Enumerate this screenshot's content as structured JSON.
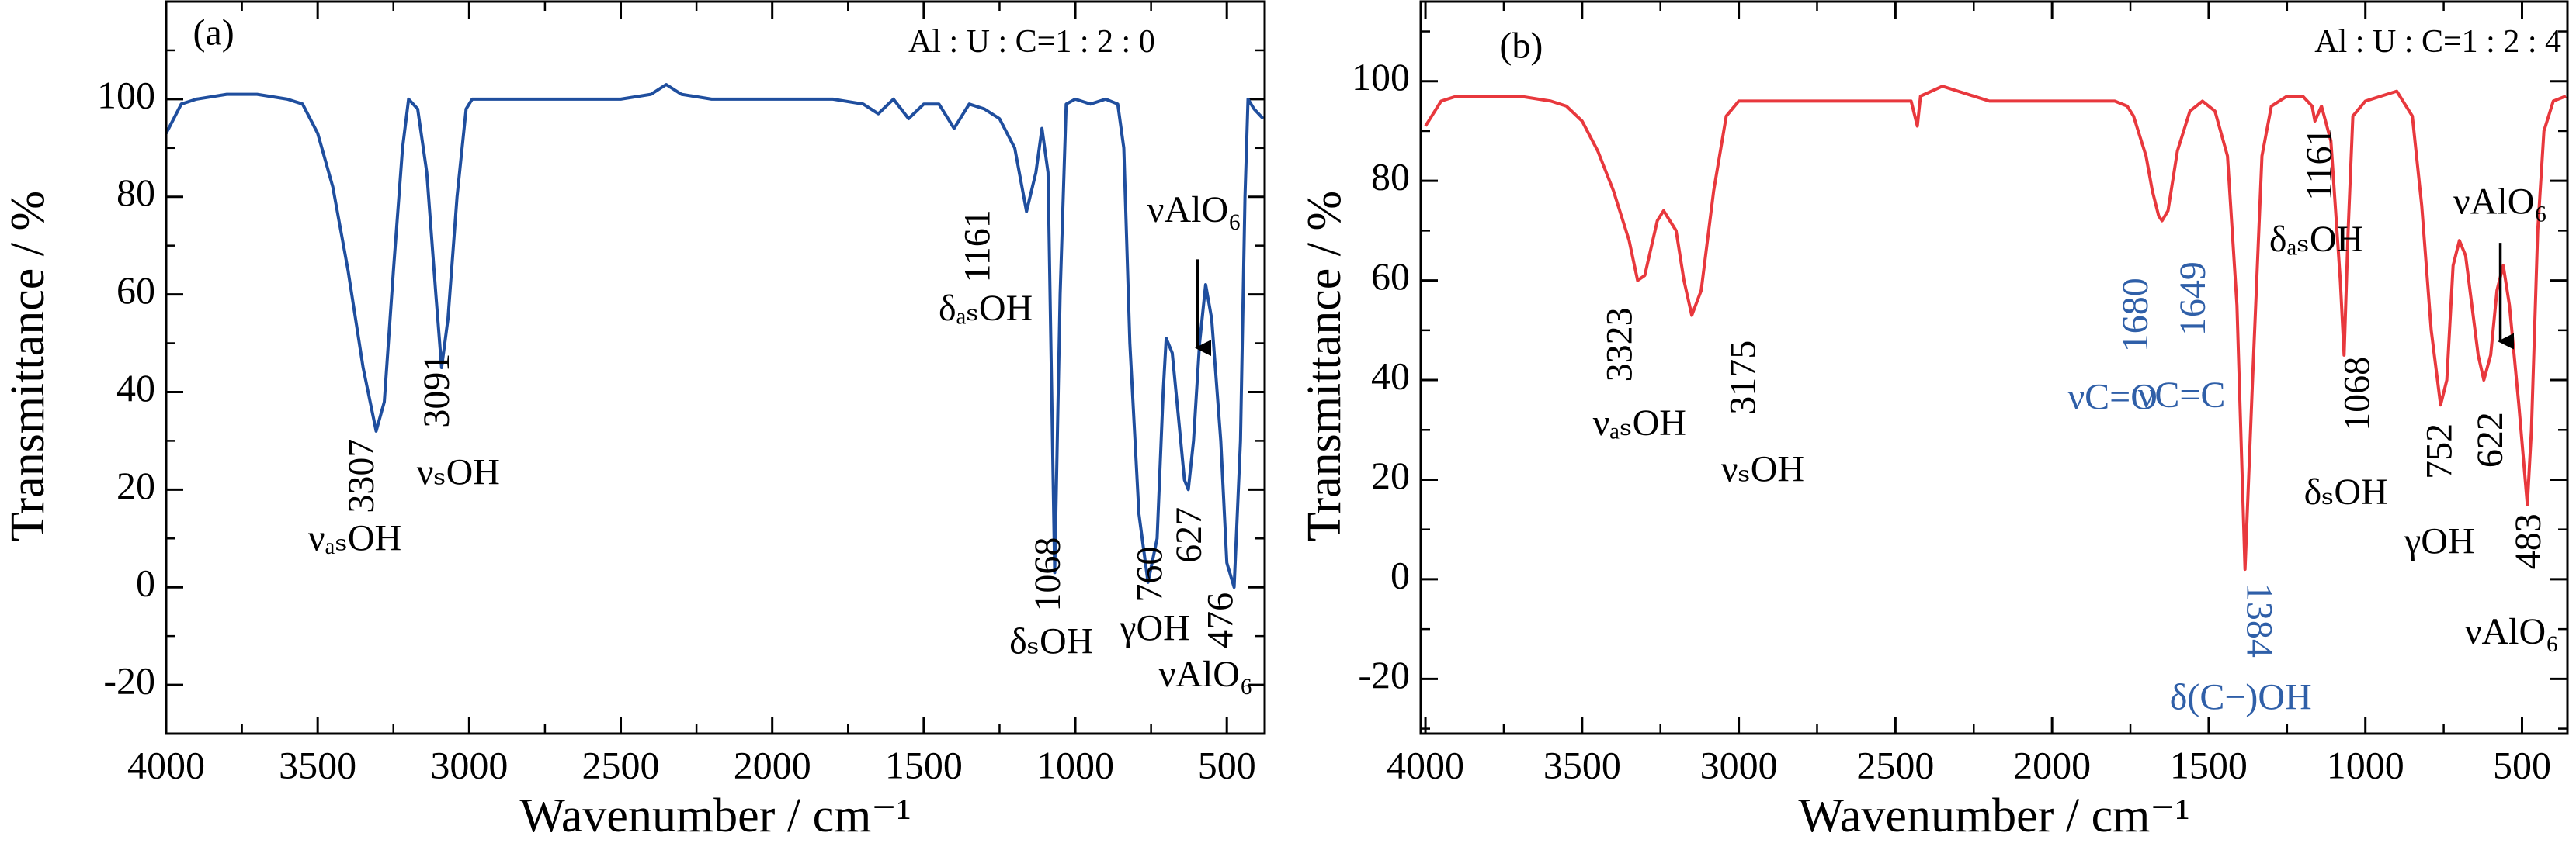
{
  "chart_data": [
    {
      "type": "line",
      "xlabel": "Wavenumber / cm⁻¹",
      "ylabel": "Transmittance / %",
      "xlim": [
        4000,
        375
      ],
      "ylim": [
        -30,
        120
      ],
      "xticks": [
        4000,
        3500,
        3000,
        2500,
        2000,
        1500,
        1000,
        500
      ],
      "yticks": [
        -20,
        0,
        20,
        40,
        60,
        80,
        100
      ],
      "color": "#1f4e9e",
      "x": [
        4000,
        3950,
        3900,
        3800,
        3700,
        3600,
        3550,
        3500,
        3450,
        3400,
        3350,
        3307,
        3280,
        3250,
        3220,
        3200,
        3170,
        3140,
        3110,
        3091,
        3070,
        3040,
        3010,
        2990,
        2800,
        2500,
        2400,
        2350,
        2300,
        2200,
        2000,
        1800,
        1700,
        1650,
        1600,
        1550,
        1500,
        1450,
        1400,
        1350,
        1300,
        1250,
        1200,
        1161,
        1130,
        1110,
        1090,
        1068,
        1050,
        1030,
        1000,
        950,
        900,
        860,
        840,
        820,
        790,
        760,
        730,
        710,
        700,
        680,
        660,
        640,
        627,
        610,
        590,
        570,
        550,
        520,
        500,
        476,
        455,
        440,
        430,
        410,
        380
      ],
      "values": [
        93,
        99,
        100,
        101,
        101,
        100,
        99,
        93,
        82,
        65,
        45,
        32,
        38,
        65,
        90,
        100,
        98,
        85,
        60,
        45,
        55,
        80,
        98,
        100,
        100,
        100,
        101,
        103,
        101,
        100,
        100,
        100,
        99,
        97,
        100,
        96,
        99,
        99,
        94,
        99,
        98,
        96,
        90,
        77,
        85,
        94,
        85,
        3,
        60,
        99,
        100,
        99,
        100,
        99,
        90,
        50,
        15,
        1,
        10,
        40,
        51,
        48,
        35,
        22,
        20,
        30,
        50,
        62,
        55,
        30,
        5,
        0,
        30,
        80,
        100,
        98,
        96
      ],
      "annotations": [
        {
          "text": "(a)"
        },
        {
          "text": "Al : U : C=1 : 2 : 0"
        },
        {
          "text": "3307"
        },
        {
          "text": "νₐₛOH"
        },
        {
          "text": "3091"
        },
        {
          "text": "νₛOH"
        },
        {
          "text": "1161"
        },
        {
          "text": "δₐₛOH"
        },
        {
          "text": "1068"
        },
        {
          "text": "δₛOH"
        },
        {
          "text": "760"
        },
        {
          "text": "γOH"
        },
        {
          "text": "627"
        },
        {
          "text": "476"
        },
        {
          "text": "νAlO₆"
        },
        {
          "text": "νAlO₆"
        }
      ]
    },
    {
      "type": "line",
      "xlabel": "Wavenumber / cm⁻¹",
      "ylabel": "Transmittance / %",
      "xlim": [
        4015,
        355
      ],
      "ylim": [
        -31,
        116
      ],
      "xticks": [
        4000,
        3500,
        3000,
        2500,
        2000,
        1500,
        1000,
        500
      ],
      "yticks": [
        -20,
        0,
        20,
        40,
        60,
        80,
        100
      ],
      "color": "#e8383d",
      "x": [
        4000,
        3950,
        3900,
        3800,
        3700,
        3600,
        3550,
        3500,
        3450,
        3400,
        3350,
        3323,
        3300,
        3260,
        3240,
        3200,
        3175,
        3150,
        3120,
        3080,
        3040,
        3000,
        2800,
        2500,
        2450,
        2430,
        2420,
        2350,
        2300,
        2200,
        2000,
        1800,
        1760,
        1740,
        1700,
        1680,
        1660,
        1649,
        1630,
        1600,
        1560,
        1520,
        1480,
        1440,
        1410,
        1384,
        1360,
        1330,
        1300,
        1250,
        1200,
        1170,
        1161,
        1140,
        1110,
        1080,
        1068,
        1055,
        1040,
        1000,
        950,
        900,
        870,
        850,
        820,
        790,
        760,
        740,
        720,
        700,
        680,
        660,
        640,
        622,
        600,
        580,
        560,
        540,
        510,
        483,
        470,
        450,
        430,
        400,
        360
      ],
      "values": [
        91,
        96,
        97,
        97,
        97,
        96,
        95,
        92,
        86,
        78,
        68,
        60,
        61,
        72,
        74,
        70,
        60,
        53,
        58,
        78,
        93,
        96,
        96,
        96,
        96,
        91,
        97,
        99,
        98,
        96,
        96,
        96,
        95,
        93,
        85,
        78,
        73,
        72,
        74,
        86,
        94,
        96,
        94,
        85,
        55,
        2,
        40,
        85,
        95,
        97,
        97,
        95,
        92,
        95,
        88,
        60,
        45,
        70,
        93,
        96,
        97,
        98,
        95,
        93,
        75,
        50,
        35,
        40,
        63,
        68,
        65,
        55,
        45,
        40,
        45,
        58,
        63,
        55,
        35,
        15,
        30,
        70,
        90,
        96,
        97
      ],
      "annotations": [
        {
          "text": "(b)"
        },
        {
          "text": "Al : U : C=1 : 2 : 4"
        },
        {
          "text": "3323"
        },
        {
          "text": "νₐₛOH"
        },
        {
          "text": "3175"
        },
        {
          "text": "νₛOH"
        },
        {
          "text": "1680",
          "color": "#2f5fa8"
        },
        {
          "text": "νC=O",
          "color": "#2f5fa8"
        },
        {
          "text": "1649",
          "color": "#2f5fa8"
        },
        {
          "text": "νC=C",
          "color": "#2f5fa8"
        },
        {
          "text": "1384",
          "color": "#2f5fa8"
        },
        {
          "text": "δ(C−)OH",
          "color": "#2f5fa8"
        },
        {
          "text": "1161"
        },
        {
          "text": "δₐₛOH"
        },
        {
          "text": "1068"
        },
        {
          "text": "δₛOH"
        },
        {
          "text": "752"
        },
        {
          "text": "γOH"
        },
        {
          "text": "622"
        },
        {
          "text": "483"
        },
        {
          "text": "νAlO₆"
        },
        {
          "text": "νAlO₆"
        }
      ]
    }
  ]
}
